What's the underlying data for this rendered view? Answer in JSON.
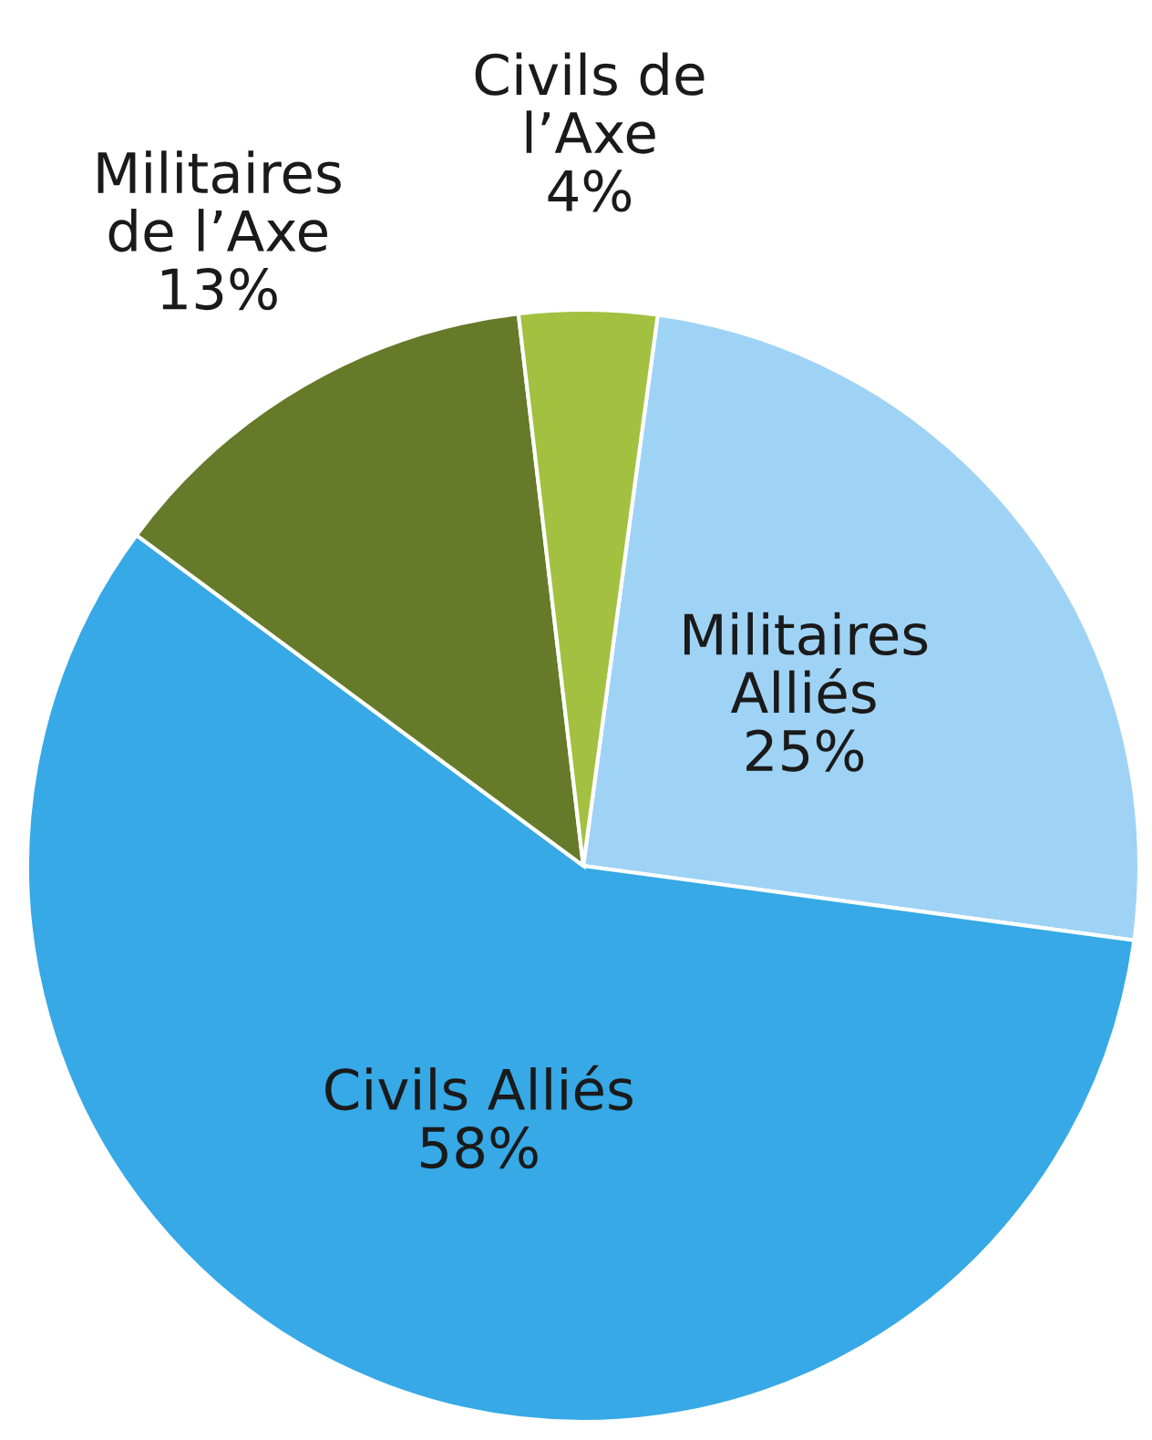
{
  "chart_data": {
    "type": "pie",
    "categories": [
      "Militaires\nAlliés",
      "Civils Alliés",
      "Militaires\nde l’Axe",
      "Civils de\nl’Axe"
    ],
    "values": [
      25,
      58,
      13,
      4
    ],
    "colors": [
      "#9fd3f5",
      "#36a9e6",
      "#667a2a",
      "#a3c040"
    ],
    "value_labels": [
      "25%",
      "58%",
      "13%",
      "4%"
    ]
  }
}
